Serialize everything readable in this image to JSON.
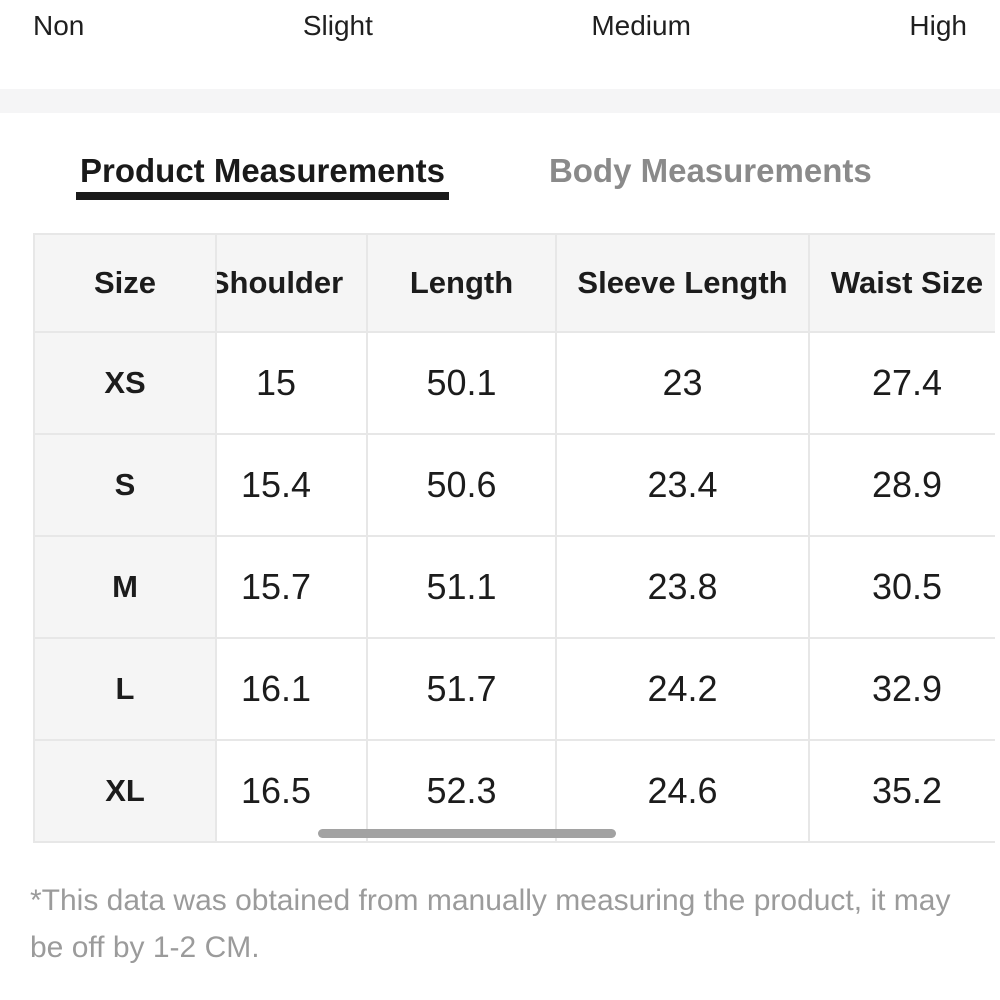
{
  "stretch_scale": {
    "options": [
      "Non",
      "Slight",
      "Medium",
      "High"
    ]
  },
  "tabs": {
    "product": "Product Measurements",
    "body": "Body Measurements"
  },
  "size_table": {
    "columns": [
      "Size",
      "Shoulder",
      "Length",
      "Sleeve Length",
      "Waist Size"
    ],
    "rows": [
      {
        "size": "XS",
        "values": [
          "15",
          "50.1",
          "23",
          "27.4"
        ]
      },
      {
        "size": "S",
        "values": [
          "15.4",
          "50.6",
          "23.4",
          "28.9"
        ]
      },
      {
        "size": "M",
        "values": [
          "15.7",
          "51.1",
          "23.8",
          "30.5"
        ]
      },
      {
        "size": "L",
        "values": [
          "16.1",
          "51.7",
          "24.2",
          "32.9"
        ]
      },
      {
        "size": "XL",
        "values": [
          "16.5",
          "52.3",
          "24.6",
          "35.2"
        ]
      }
    ]
  },
  "footnote": "*This data was obtained from manually measuring the product, it may be off by 1-2 CM.",
  "colors": {
    "active_tab": "#1a1a1a",
    "inactive_tab": "#8a8a8a",
    "table_header_bg": "#f5f5f5",
    "table_border": "#e7e7e7",
    "divider_band": "#f5f5f6",
    "footnote_text": "#9b9b9b",
    "scrollbar_thumb": "#a2a2a2"
  }
}
